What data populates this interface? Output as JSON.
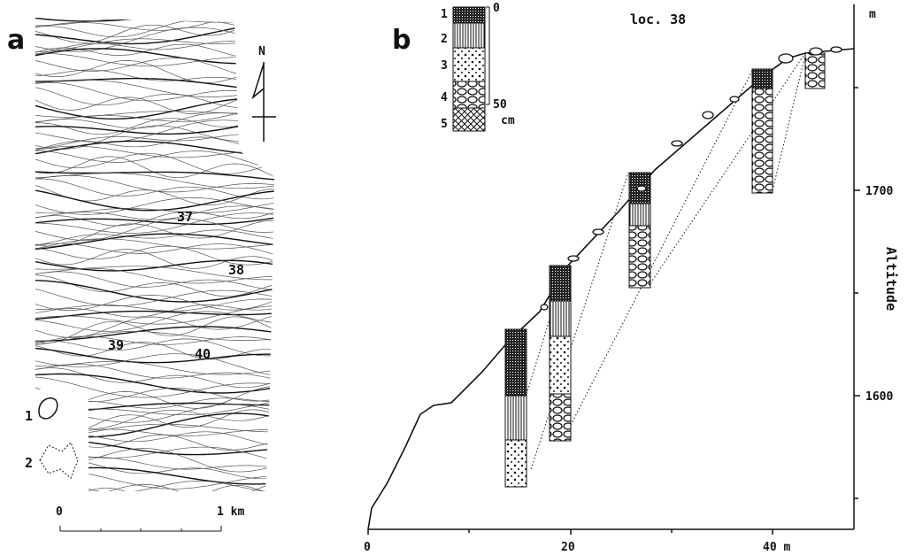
{
  "panel_a": {
    "label": "a",
    "north": "N",
    "locations": [
      "37",
      "38",
      "39",
      "40"
    ],
    "legend": [
      "1",
      "2"
    ],
    "scale": [
      "0",
      "1 km"
    ]
  },
  "panel_b": {
    "label": "b",
    "title": "loc. 38",
    "legend": {
      "items": [
        "1",
        "2",
        "3",
        "4",
        "5"
      ],
      "scale": [
        "0",
        "50",
        "cm"
      ]
    },
    "x_axis": [
      "0",
      "20",
      "40 m"
    ],
    "y_axis": {
      "unit": "m",
      "ticks": [
        "1700",
        "1600"
      ],
      "label": "Altitude"
    }
  }
}
